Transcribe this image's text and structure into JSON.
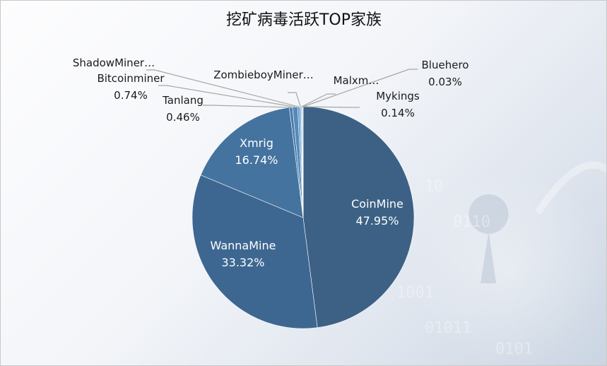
{
  "chart_data": {
    "type": "pie",
    "title": "挖矿病毒活跃TOP家族",
    "slices": [
      {
        "name": "CoinMine",
        "value": 47.95,
        "label": "47.95%",
        "color": "#3c6185"
      },
      {
        "name": "WannaMine",
        "value": 33.32,
        "label": "33.32%",
        "color": "#3d6791"
      },
      {
        "name": "Xmrig",
        "value": 16.74,
        "label": "16.74%",
        "color": "#44739f"
      },
      {
        "name": "Tanlang",
        "value": 0.46,
        "label": "0.46%",
        "color": "#4a7dad"
      },
      {
        "name": "Bitcoinminer",
        "value": 0.74,
        "label": "0.74%",
        "color": "#5589bb"
      },
      {
        "name": "ShadowMiner…",
        "value": 0.3,
        "label": "",
        "color": "#6398c8"
      },
      {
        "name": "ZombieboyMiner…",
        "value": 0.2,
        "label": "",
        "color": "#74a6d2"
      },
      {
        "name": "Malxm…",
        "value": 0.12,
        "label": "",
        "color": "#88b4dc"
      },
      {
        "name": "Mykings",
        "value": 0.14,
        "label": "0.14%",
        "color": "#9bc1e2"
      },
      {
        "name": "Bluehero",
        "value": 0.03,
        "label": "0.03%",
        "color": "#b0cfe9"
      }
    ]
  }
}
